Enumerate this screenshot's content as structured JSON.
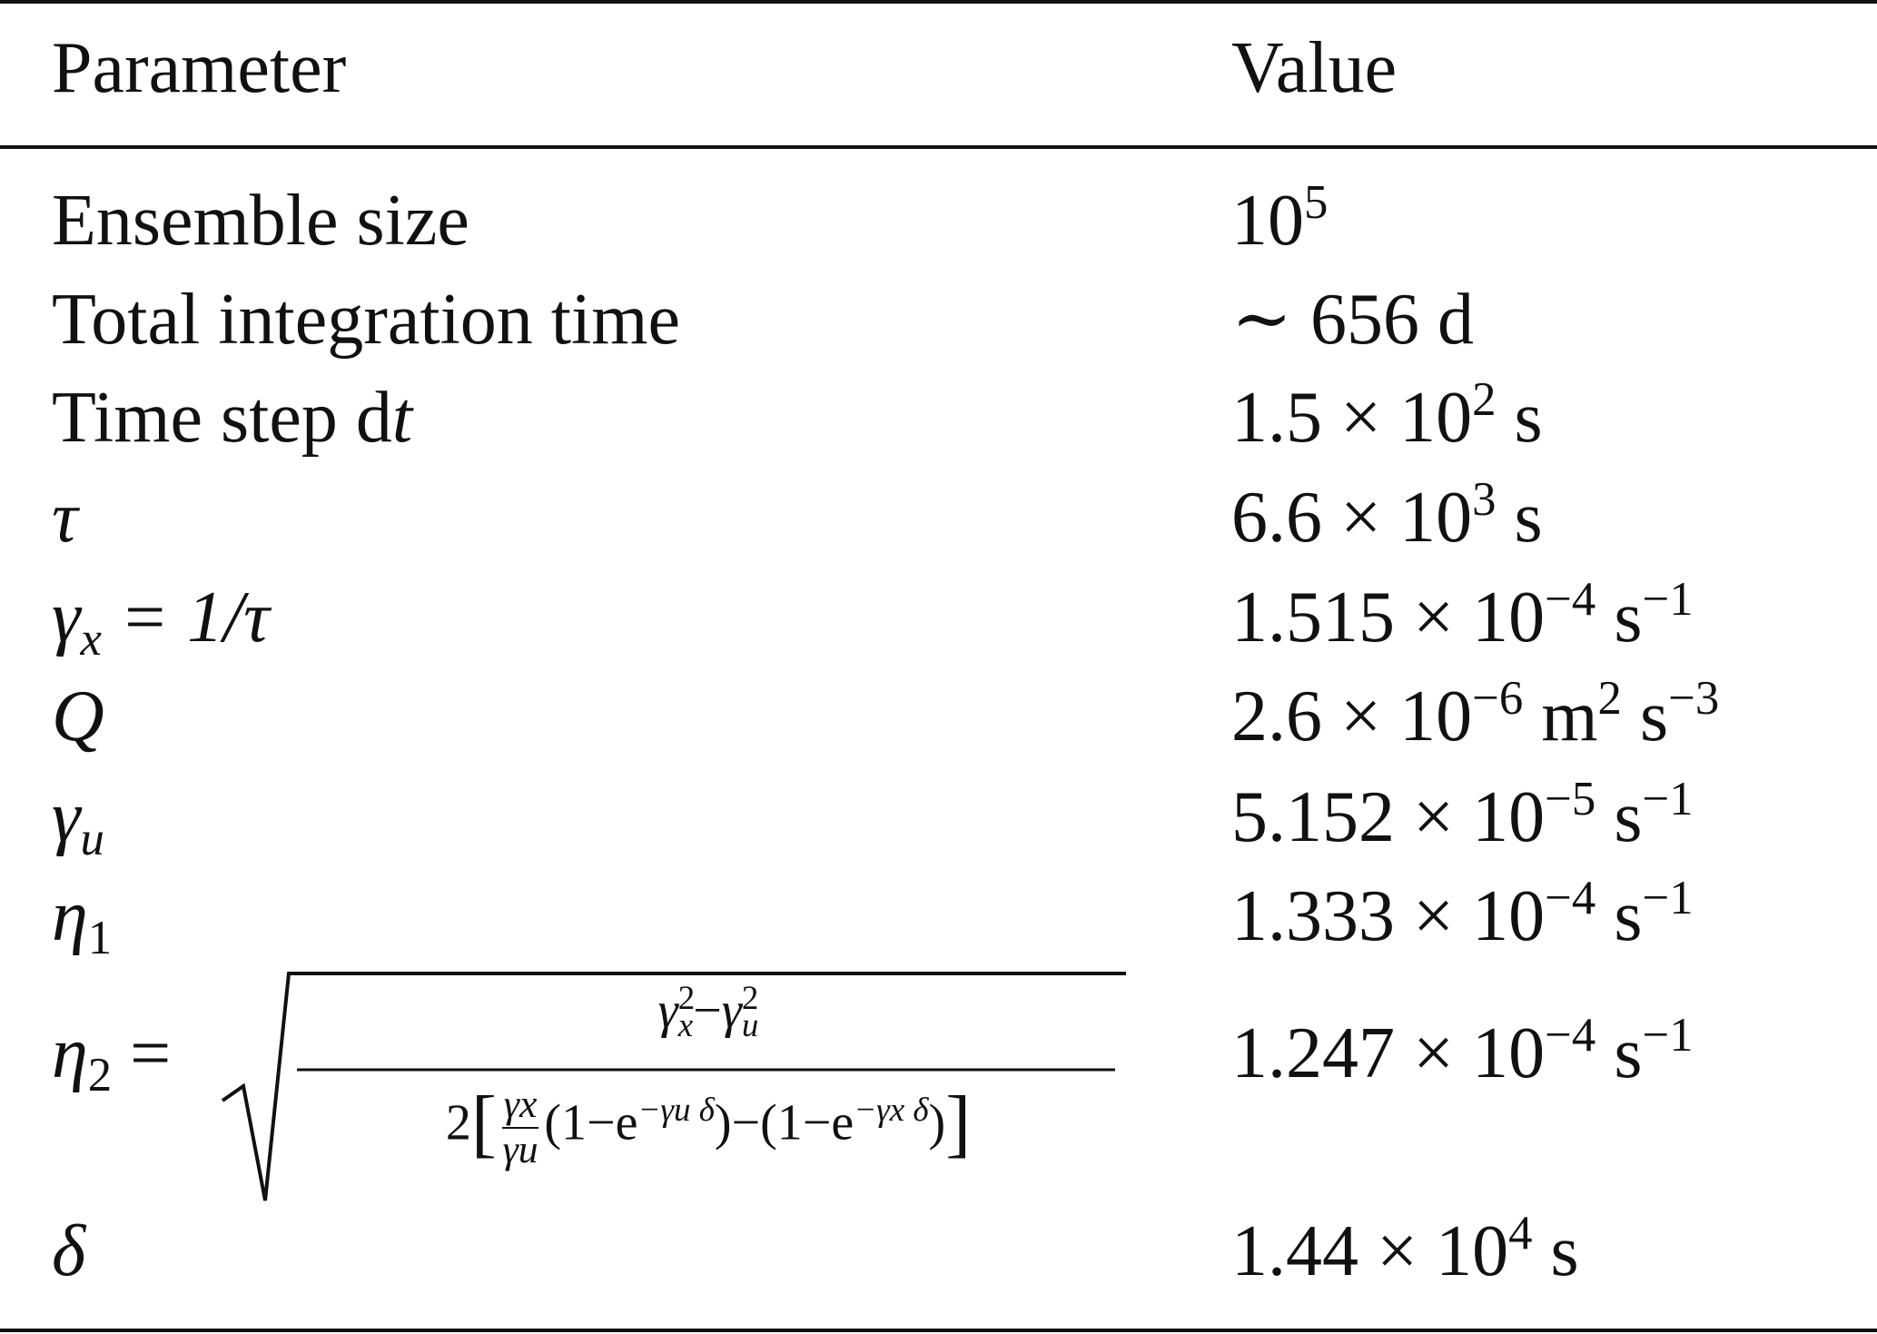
{
  "table": {
    "header": {
      "parameter": "Parameter",
      "value": "Value"
    },
    "rows": [
      {
        "param": "Ensemble size",
        "value_base": "10",
        "value_exp": "5"
      },
      {
        "param": "Total integration time",
        "value": "∼ 656 d"
      },
      {
        "param_text": "Time step d",
        "param_italic": "t",
        "value_mant": "1.5 × 10",
        "value_exp": "2",
        "value_unit": " s"
      },
      {
        "param": "τ",
        "value_mant": "6.6 × 10",
        "value_exp": "3",
        "value_unit": " s"
      },
      {
        "param_sym": "γ",
        "param_sub": "x",
        "param_rest": " = 1/τ",
        "value_mant": "1.515 × 10",
        "value_exp": "−4",
        "value_unit": " s",
        "value_unit_exp": "−1"
      },
      {
        "param": "Q",
        "value_mant": "2.6 × 10",
        "value_exp": "−6",
        "value_unit1": " m",
        "value_unit1_exp": "2",
        "value_unit2": " s",
        "value_unit2_exp": "−3"
      },
      {
        "param_sym": "γ",
        "param_sub": "u",
        "value_mant": "5.152 × 10",
        "value_exp": "−5",
        "value_unit": " s",
        "value_unit_exp": "−1"
      },
      {
        "param_sym": "η",
        "param_sub": "1",
        "value_mant": "1.333 × 10",
        "value_exp": "−4",
        "value_unit": " s",
        "value_unit_exp": "−1"
      },
      {
        "param_sym": "η",
        "param_sub": "2",
        "param_rest": " =",
        "value_mant": "1.247 × 10",
        "value_exp": "−4",
        "value_unit": " s",
        "value_unit_exp": "−1",
        "formula": {
          "num_g1": "γ",
          "num_g1_sup": "2",
          "num_g1_sub": "x",
          "num_minus": "−",
          "num_g2": "γ",
          "num_g2_sup": "2",
          "num_g2_sub": "u",
          "den_two": "2",
          "den_lbr": "[",
          "den_frac_n": "γx",
          "den_frac_d": "γu",
          "den_term1_open": "(1−e",
          "den_term1_exp": "−γu δ",
          "den_term1_close": ")",
          "den_minus": "−",
          "den_term2_open": "(1−e",
          "den_term2_exp": "−γx δ",
          "den_term2_close": ")",
          "den_rbr": "]"
        }
      },
      {
        "param": "δ",
        "value_mant": "1.44 × 10",
        "value_exp": "4",
        "value_unit": " s"
      }
    ]
  }
}
